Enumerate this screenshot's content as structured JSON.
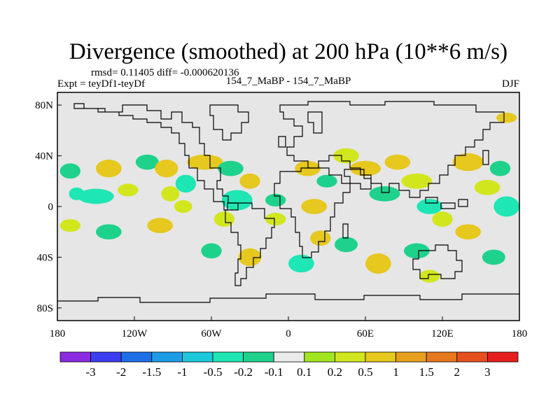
{
  "chart_data": {
    "type": "heatmap",
    "title": "Divergence (smoothed) at 200 hPa (10**6 m/s)",
    "stats": "rmsd= 0.11405 diff= -0.000620136",
    "left_label": "Expt = teyDf1-teyDf",
    "center_label": "154_7_MaBP - 154_7_MaBP",
    "right_label": "DJF",
    "xlim": [
      -180,
      180
    ],
    "ylim": [
      -90,
      90
    ],
    "x_ticks": [
      {
        "value": -180,
        "label": "180"
      },
      {
        "value": -120,
        "label": "120W"
      },
      {
        "value": -60,
        "label": "60W"
      },
      {
        "value": 0,
        "label": "0"
      },
      {
        "value": 60,
        "label": "60E"
      },
      {
        "value": 120,
        "label": "120E"
      },
      {
        "value": 180,
        "label": "180"
      }
    ],
    "y_ticks": [
      {
        "value": 80,
        "label": "80N"
      },
      {
        "value": 40,
        "label": "40N"
      },
      {
        "value": 0,
        "label": "0"
      },
      {
        "value": -40,
        "label": "40S"
      },
      {
        "value": -80,
        "label": "80S"
      }
    ],
    "colorbar": {
      "colors": [
        "#8a2be2",
        "#3c3cf0",
        "#1e6ee6",
        "#1e9be6",
        "#1ec8dc",
        "#1ee6b4",
        "#1ed28c",
        "#ebebeb",
        "#a0e61e",
        "#d2e61e",
        "#e6c81e",
        "#e6a01e",
        "#e6781e",
        "#e6501e",
        "#e61e1e"
      ],
      "labels": [
        "-3",
        "-2",
        "-1.5",
        "-1",
        "-0.5",
        "-0.2",
        "-0.1",
        "0.1",
        "0.2",
        "0.5",
        "1",
        "1.5",
        "2",
        "3"
      ]
    },
    "features": [
      {
        "lon": -170,
        "lat": 28,
        "rx": 8,
        "ry": 6,
        "v": -0.2
      },
      {
        "lon": -165,
        "lat": 10,
        "rx": 6,
        "ry": 5,
        "v": -0.5
      },
      {
        "lon": -140,
        "lat": 30,
        "rx": 10,
        "ry": 7,
        "v": 0.5
      },
      {
        "lon": -150,
        "lat": 8,
        "rx": 14,
        "ry": 6,
        "v": -0.5
      },
      {
        "lon": -125,
        "lat": 13,
        "rx": 8,
        "ry": 5,
        "v": 0.2
      },
      {
        "lon": -110,
        "lat": 35,
        "rx": 9,
        "ry": 6,
        "v": -0.2
      },
      {
        "lon": -95,
        "lat": 30,
        "rx": 9,
        "ry": 7,
        "v": 0.5
      },
      {
        "lon": -92,
        "lat": 10,
        "rx": 7,
        "ry": 6,
        "v": 0.2
      },
      {
        "lon": -80,
        "lat": 18,
        "rx": 8,
        "ry": 7,
        "v": -0.5
      },
      {
        "lon": -82,
        "lat": 0,
        "rx": 7,
        "ry": 5,
        "v": 0.2
      },
      {
        "lon": -65,
        "lat": 35,
        "rx": 14,
        "ry": 6,
        "v": 0.5
      },
      {
        "lon": -45,
        "lat": 30,
        "rx": 10,
        "ry": 6,
        "v": -0.2
      },
      {
        "lon": -40,
        "lat": 5,
        "rx": 12,
        "ry": 8,
        "v": -0.5
      },
      {
        "lon": -50,
        "lat": -10,
        "rx": 8,
        "ry": 6,
        "v": 0.2
      },
      {
        "lon": -30,
        "lat": 20,
        "rx": 8,
        "ry": 6,
        "v": 0.5
      },
      {
        "lon": -10,
        "lat": 5,
        "rx": 8,
        "ry": 5,
        "v": -0.2
      },
      {
        "lon": 15,
        "lat": 30,
        "rx": 10,
        "ry": 6,
        "v": 0.5
      },
      {
        "lon": 20,
        "lat": 0,
        "rx": 10,
        "ry": 6,
        "v": 0.5
      },
      {
        "lon": 30,
        "lat": 20,
        "rx": 8,
        "ry": 5,
        "v": -0.2
      },
      {
        "lon": 45,
        "lat": 40,
        "rx": 10,
        "ry": 6,
        "v": 0.2
      },
      {
        "lon": 60,
        "lat": 30,
        "rx": 12,
        "ry": 6,
        "v": 0.5
      },
      {
        "lon": 75,
        "lat": 10,
        "rx": 12,
        "ry": 6,
        "v": -0.2
      },
      {
        "lon": 85,
        "lat": 35,
        "rx": 10,
        "ry": 6,
        "v": 0.5
      },
      {
        "lon": 100,
        "lat": 20,
        "rx": 12,
        "ry": 6,
        "v": 0.2
      },
      {
        "lon": 110,
        "lat": 0,
        "rx": 10,
        "ry": 6,
        "v": -0.5
      },
      {
        "lon": 120,
        "lat": -10,
        "rx": 8,
        "ry": 6,
        "v": 0.2
      },
      {
        "lon": 140,
        "lat": 35,
        "rx": 12,
        "ry": 7,
        "v": 0.5
      },
      {
        "lon": 155,
        "lat": 15,
        "rx": 10,
        "ry": 6,
        "v": 0.2
      },
      {
        "lon": 170,
        "lat": 0,
        "rx": 10,
        "ry": 8,
        "v": -0.5
      },
      {
        "lon": 165,
        "lat": 30,
        "rx": 8,
        "ry": 6,
        "v": -0.2
      },
      {
        "lon": 170,
        "lat": 70,
        "rx": 8,
        "ry": 4,
        "v": 0.5
      },
      {
        "lon": -140,
        "lat": -20,
        "rx": 10,
        "ry": 6,
        "v": -0.2
      },
      {
        "lon": -100,
        "lat": -15,
        "rx": 10,
        "ry": 6,
        "v": 0.5
      },
      {
        "lon": -60,
        "lat": -35,
        "rx": 8,
        "ry": 6,
        "v": -0.2
      },
      {
        "lon": -30,
        "lat": -40,
        "rx": 9,
        "ry": 7,
        "v": 0.5
      },
      {
        "lon": -10,
        "lat": -10,
        "rx": 8,
        "ry": 5,
        "v": 0.2
      },
      {
        "lon": 10,
        "lat": -45,
        "rx": 10,
        "ry": 7,
        "v": -0.5
      },
      {
        "lon": 25,
        "lat": -25,
        "rx": 8,
        "ry": 6,
        "v": 0.5
      },
      {
        "lon": 45,
        "lat": -30,
        "rx": 9,
        "ry": 6,
        "v": -0.2
      },
      {
        "lon": 70,
        "lat": -45,
        "rx": 10,
        "ry": 8,
        "v": 0.5
      },
      {
        "lon": 100,
        "lat": -35,
        "rx": 10,
        "ry": 6,
        "v": -0.2
      },
      {
        "lon": 140,
        "lat": -20,
        "rx": 10,
        "ry": 6,
        "v": 0.5
      },
      {
        "lon": 160,
        "lat": -40,
        "rx": 9,
        "ry": 6,
        "v": -0.2
      },
      {
        "lon": 110,
        "lat": -55,
        "rx": 8,
        "ry": 5,
        "v": 0.2
      },
      {
        "lon": -170,
        "lat": -15,
        "rx": 8,
        "ry": 5,
        "v": 0.2
      }
    ]
  }
}
